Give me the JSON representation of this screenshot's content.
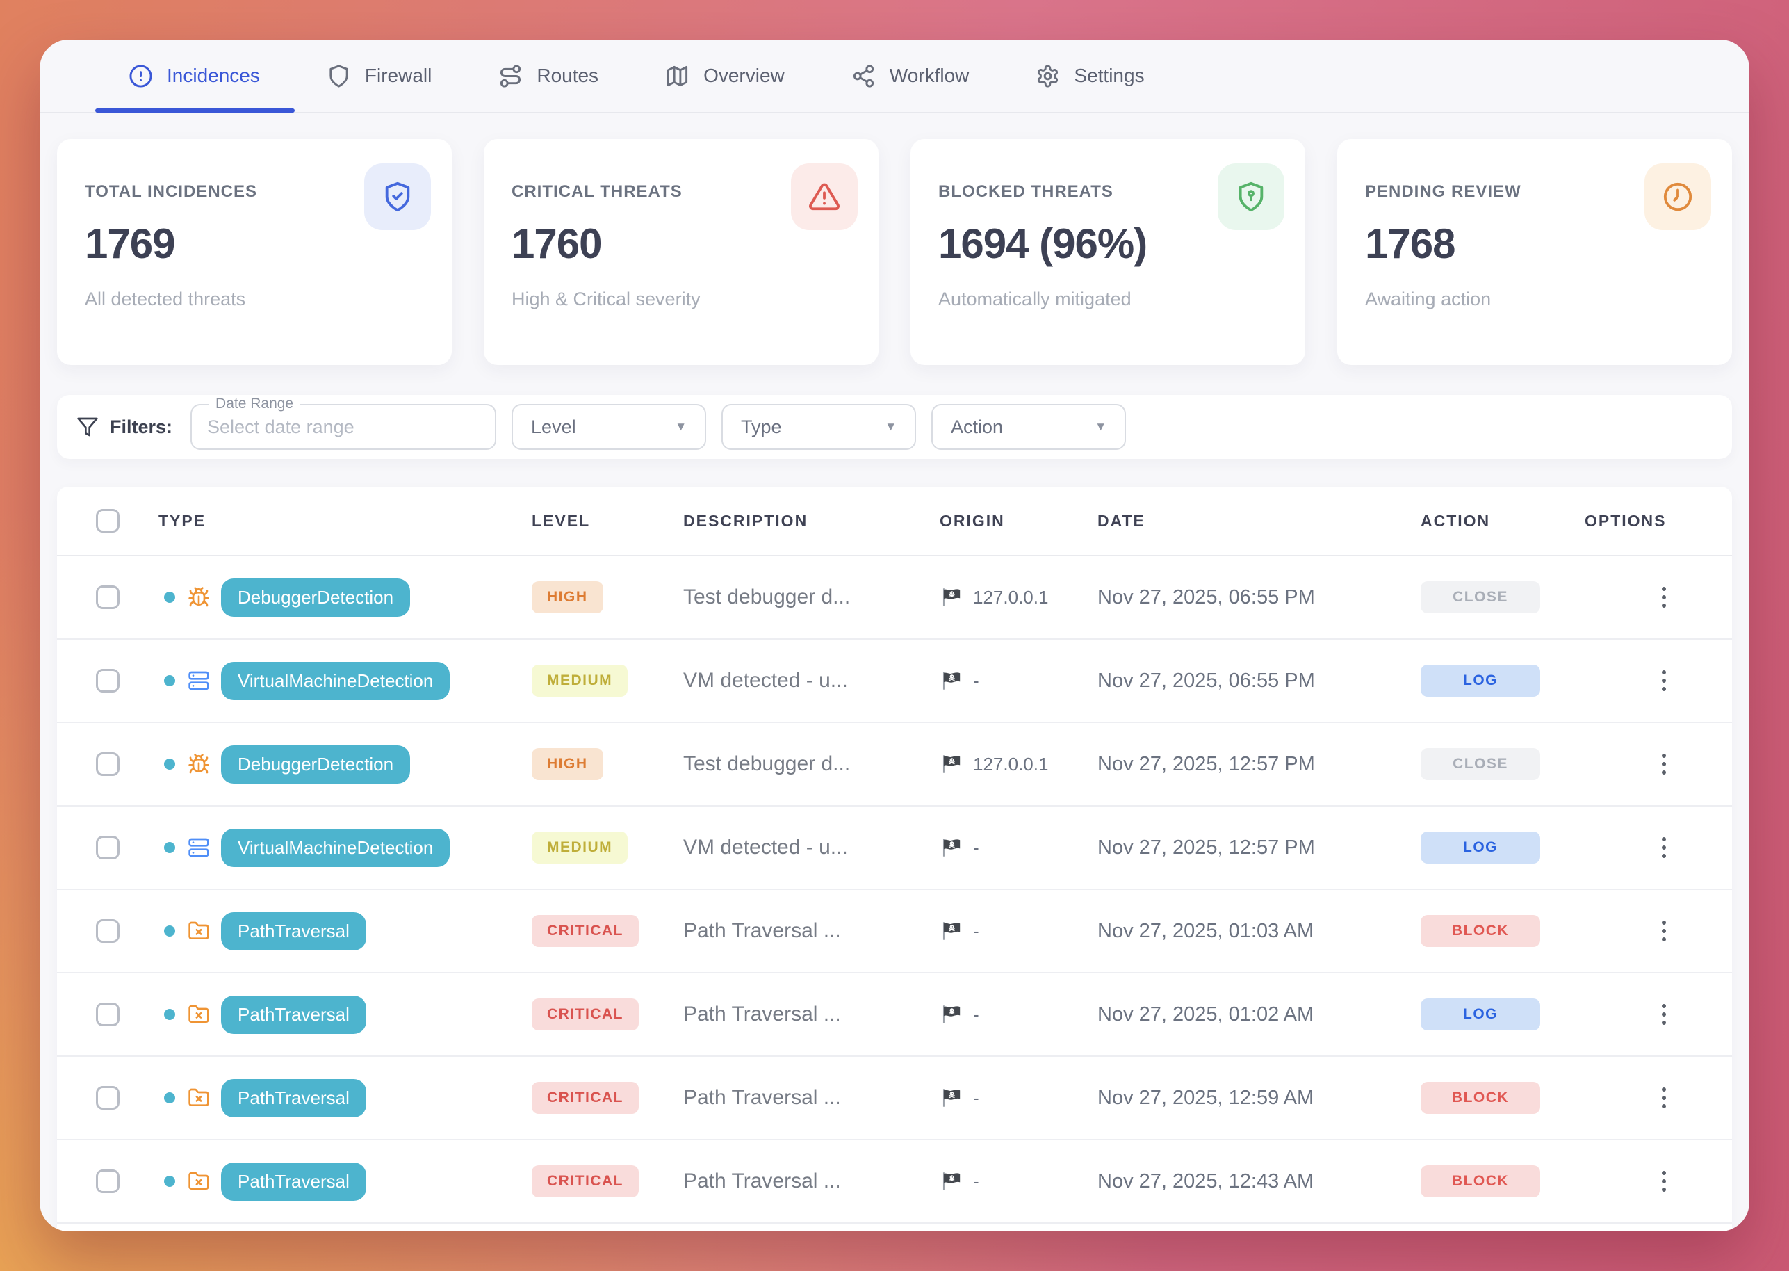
{
  "tabs": [
    {
      "label": "Incidences",
      "icon": "alert-circle-icon",
      "active": true
    },
    {
      "label": "Firewall",
      "icon": "shield-icon",
      "active": false
    },
    {
      "label": "Routes",
      "icon": "route-icon",
      "active": false
    },
    {
      "label": "Overview",
      "icon": "map-icon",
      "active": false
    },
    {
      "label": "Workflow",
      "icon": "workflow-icon",
      "active": false
    },
    {
      "label": "Settings",
      "icon": "gear-icon",
      "active": false
    }
  ],
  "stats": [
    {
      "label": "TOTAL INCIDENCES",
      "value": "1769",
      "subtext": "All detected threats",
      "icon": "shield-check-icon",
      "icon_color": "#4468dd",
      "icon_bg": "#e8edfb"
    },
    {
      "label": "CRITICAL THREATS",
      "value": "1760",
      "subtext": "High & Critical severity",
      "icon": "alert-triangle-icon",
      "icon_color": "#dd5a52",
      "icon_bg": "#fcebe9"
    },
    {
      "label": "BLOCKED THREATS",
      "value": "1694 (96%)",
      "subtext": "Automatically mitigated",
      "icon": "shield-lock-icon",
      "icon_color": "#56b369",
      "icon_bg": "#e9f7ee"
    },
    {
      "label": "PENDING REVIEW",
      "value": "1768",
      "subtext": "Awaiting action",
      "icon": "clock-icon",
      "icon_color": "#e08a3c",
      "icon_bg": "#fdf1e2"
    }
  ],
  "filters": {
    "heading": "Filters:",
    "date_range": {
      "legend": "Date Range",
      "placeholder": "Select date range",
      "value": ""
    },
    "dropdowns": [
      {
        "label": "Level"
      },
      {
        "label": "Type"
      },
      {
        "label": "Action"
      }
    ]
  },
  "table": {
    "columns": [
      "TYPE",
      "LEVEL",
      "DESCRIPTION",
      "ORIGIN",
      "DATE",
      "ACTION",
      "OPTIONS"
    ],
    "rows": [
      {
        "type": "DebuggerDetection",
        "type_icon": "bug-icon",
        "level": "HIGH",
        "description": "Test debugger d...",
        "origin_icon": "pirate-flag-icon",
        "origin": "127.0.0.1",
        "date": "Nov 27, 2025, 06:55 PM",
        "action": "CLOSE"
      },
      {
        "type": "VirtualMachineDetection",
        "type_icon": "server-icon",
        "level": "MEDIUM",
        "description": "VM detected - u...",
        "origin_icon": "pirate-flag-icon",
        "origin": "-",
        "date": "Nov 27, 2025, 06:55 PM",
        "action": "LOG"
      },
      {
        "type": "DebuggerDetection",
        "type_icon": "bug-icon",
        "level": "HIGH",
        "description": "Test debugger d...",
        "origin_icon": "pirate-flag-icon",
        "origin": "127.0.0.1",
        "date": "Nov 27, 2025, 12:57 PM",
        "action": "CLOSE"
      },
      {
        "type": "VirtualMachineDetection",
        "type_icon": "server-icon",
        "level": "MEDIUM",
        "description": "VM detected - u...",
        "origin_icon": "pirate-flag-icon",
        "origin": "-",
        "date": "Nov 27, 2025, 12:57 PM",
        "action": "LOG"
      },
      {
        "type": "PathTraversal",
        "type_icon": "folder-x-icon",
        "level": "CRITICAL",
        "description": "Path Traversal ...",
        "origin_icon": "pirate-flag-icon",
        "origin": "-",
        "date": "Nov 27, 2025, 01:03 AM",
        "action": "BLOCK"
      },
      {
        "type": "PathTraversal",
        "type_icon": "folder-x-icon",
        "level": "CRITICAL",
        "description": "Path Traversal ...",
        "origin_icon": "pirate-flag-icon",
        "origin": "-",
        "date": "Nov 27, 2025, 01:02 AM",
        "action": "LOG"
      },
      {
        "type": "PathTraversal",
        "type_icon": "folder-x-icon",
        "level": "CRITICAL",
        "description": "Path Traversal ...",
        "origin_icon": "pirate-flag-icon",
        "origin": "-",
        "date": "Nov 27, 2025, 12:59 AM",
        "action": "BLOCK"
      },
      {
        "type": "PathTraversal",
        "type_icon": "folder-x-icon",
        "level": "CRITICAL",
        "description": "Path Traversal ...",
        "origin_icon": "pirate-flag-icon",
        "origin": "-",
        "date": "Nov 27, 2025, 12:43 AM",
        "action": "BLOCK"
      }
    ]
  },
  "colors": {
    "accent_blue": "#3a57d7",
    "type_badge_teal": "#4db4ce",
    "level_high": "#dd7c33",
    "level_medium": "#bfae3a",
    "level_critical": "#d9534f",
    "action_log_blue": "#2b63e0",
    "action_block_red": "#e05752",
    "bg_gradient_left": "#e0815f",
    "bg_gradient_right": "#cb5a74"
  }
}
